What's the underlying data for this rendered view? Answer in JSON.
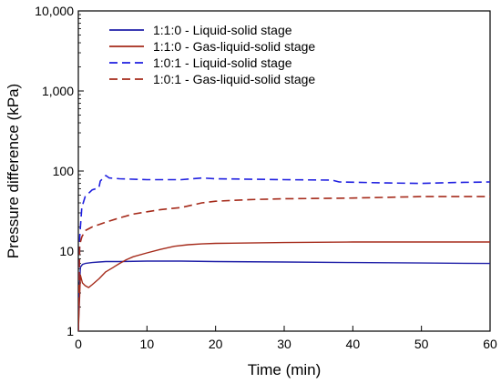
{
  "chart_data": {
    "type": "line",
    "xlabel": "Time (min)",
    "ylabel": "Pressure difference (kPa)",
    "xlim": [
      0,
      60
    ],
    "ylim": [
      1,
      10000
    ],
    "y_scale": "log",
    "grid": false,
    "legend_position": "top-left",
    "x_ticks": [
      0,
      10,
      20,
      30,
      40,
      50,
      60
    ],
    "x_tick_labels": [
      "0",
      "10",
      "20",
      "30",
      "40",
      "50",
      "60"
    ],
    "y_ticks": [
      1,
      10,
      100,
      1000,
      10000
    ],
    "y_tick_labels": [
      "1",
      "10",
      "100",
      "1,000",
      "10,000"
    ],
    "series": [
      {
        "name": "1:1:0 - Liquid-solid stage",
        "color": "#1f1fa8",
        "dash": "solid",
        "x": [
          0,
          0.1,
          0.3,
          0.6,
          1,
          2,
          3,
          4,
          6,
          10,
          15,
          20,
          30,
          40,
          50,
          60
        ],
        "y": [
          1,
          3,
          6.3,
          6.8,
          7.0,
          7.2,
          7.3,
          7.4,
          7.4,
          7.5,
          7.5,
          7.4,
          7.3,
          7.2,
          7.1,
          7.0
        ]
      },
      {
        "name": "1:1:0 - Gas-liquid-solid stage",
        "color": "#a52a1a",
        "dash": "solid",
        "x": [
          0,
          0.3,
          0.6,
          1,
          1.5,
          2,
          3,
          4,
          5,
          6,
          7,
          8,
          10,
          12,
          14,
          16,
          18,
          20,
          30,
          40,
          50,
          60
        ],
        "y": [
          1,
          5,
          4.0,
          3.7,
          3.5,
          3.8,
          4.5,
          5.5,
          6.2,
          7.0,
          7.8,
          8.5,
          9.5,
          10.5,
          11.5,
          12.0,
          12.3,
          12.5,
          12.8,
          13.0,
          13.0,
          13.0
        ]
      },
      {
        "name": "1:0:1 - Liquid-solid stage",
        "color": "#1f1fe0",
        "dash": "dashed",
        "x": [
          0,
          0.2,
          0.5,
          1,
          2,
          3,
          3.2,
          4,
          4.5,
          6,
          10,
          15,
          18,
          20,
          30,
          37,
          38,
          45,
          50,
          55,
          60
        ],
        "y": [
          1,
          15,
          35,
          48,
          58,
          62,
          75,
          88,
          82,
          80,
          78,
          78,
          82,
          80,
          78,
          77,
          73,
          71,
          70,
          72,
          73
        ]
      },
      {
        "name": "1:0:1 - Gas-liquid-solid stage",
        "color": "#a52a1a",
        "dash": "dashed",
        "x": [
          0,
          0.2,
          0.5,
          1,
          2,
          4,
          6,
          8,
          10,
          12,
          15,
          18,
          20,
          25,
          30,
          40,
          50,
          60
        ],
        "y": [
          1,
          12,
          15,
          18,
          20,
          23,
          26,
          29,
          31,
          33,
          35,
          40,
          42,
          44,
          45,
          46,
          48,
          48
        ]
      }
    ]
  }
}
